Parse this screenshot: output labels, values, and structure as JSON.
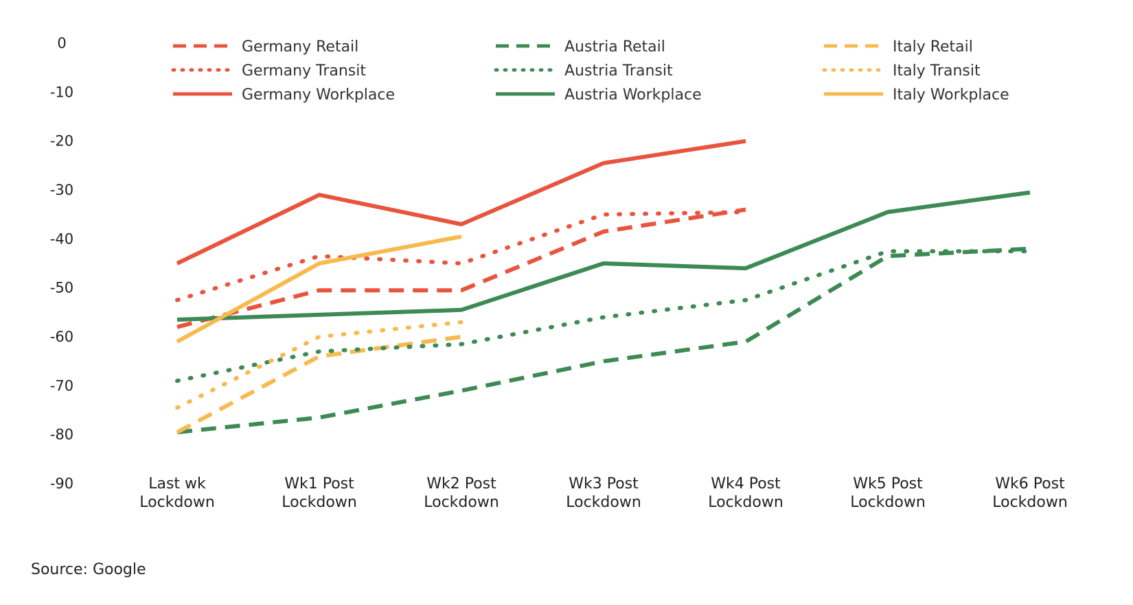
{
  "source_note": "Source: Google",
  "chart_data": {
    "type": "line",
    "title": "",
    "xlabel": "",
    "ylabel": "",
    "ylim": [
      -90,
      0
    ],
    "yticks": [
      0,
      -10,
      -20,
      -30,
      -40,
      -50,
      -60,
      -70,
      -80,
      -90
    ],
    "grid": false,
    "legend_position": "top",
    "categories": [
      [
        "Last wk",
        "Lockdown"
      ],
      [
        "Wk1 Post",
        "Lockdown"
      ],
      [
        "Wk2 Post",
        "Lockdown"
      ],
      [
        "Wk3 Post",
        "Lockdown"
      ],
      [
        "Wk4 Post",
        "Lockdown"
      ],
      [
        "Wk5 Post",
        "Lockdown"
      ],
      [
        "Wk6 Post",
        "Lockdown"
      ]
    ],
    "colors": {
      "germany": "#E8553E",
      "austria": "#3D8A55",
      "italy": "#F7BA4F"
    },
    "series": [
      {
        "name": "Germany Retail",
        "country": "germany",
        "style": "dashed",
        "values": [
          -58,
          -50.5,
          -50.5,
          -38.5,
          -34,
          null,
          null
        ]
      },
      {
        "name": "Austria Retail",
        "country": "austria",
        "style": "dashed",
        "values": [
          -79.5,
          -76.5,
          -71,
          -65,
          -61,
          -43.5,
          -42
        ]
      },
      {
        "name": "Italy Retail",
        "country": "italy",
        "style": "dashed",
        "values": [
          -79.5,
          -64,
          -60,
          null,
          null,
          null,
          null
        ]
      },
      {
        "name": "Germany Transit",
        "country": "germany",
        "style": "dotted",
        "values": [
          -52.5,
          -43.5,
          -45,
          -35,
          -34.5,
          null,
          null
        ]
      },
      {
        "name": "Austria Transit",
        "country": "austria",
        "style": "dotted",
        "values": [
          -69,
          -63,
          -61.5,
          -56,
          -52.5,
          -42.5,
          -42.5
        ]
      },
      {
        "name": "Italy Transit",
        "country": "italy",
        "style": "dotted",
        "values": [
          -74.5,
          -60,
          -57,
          null,
          null,
          null,
          null
        ]
      },
      {
        "name": "Germany Workplace",
        "country": "germany",
        "style": "solid",
        "values": [
          -45,
          -31,
          -37,
          -24.5,
          -20,
          null,
          null
        ]
      },
      {
        "name": "Austria Workplace",
        "country": "austria",
        "style": "solid",
        "values": [
          -56.5,
          -55.5,
          -54.5,
          -45,
          -46,
          -34.5,
          -30.5
        ]
      },
      {
        "name": "Italy Workplace",
        "country": "italy",
        "style": "solid",
        "values": [
          -61,
          -45,
          -39.5,
          null,
          null,
          null,
          null
        ]
      }
    ]
  }
}
